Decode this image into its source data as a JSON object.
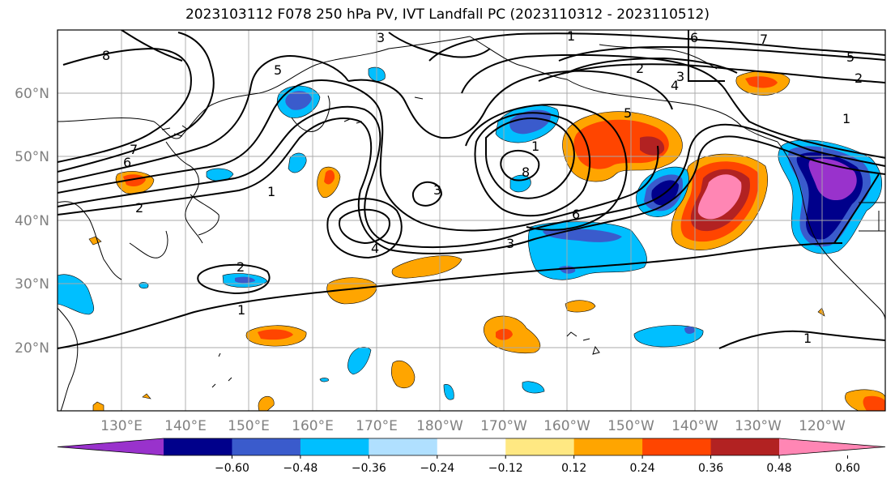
{
  "title": "2023103112 F078 250 hPa PV, IVT Landfall PC (2023110312 - 2023110512)",
  "lat_labels": [
    "60°N",
    "50°N",
    "40°N",
    "30°N",
    "20°N"
  ],
  "lon_labels": [
    "130°E",
    "140°E",
    "150°E",
    "160°E",
    "170°E",
    "180°W",
    "170°W",
    "160°W",
    "150°W",
    "140°W",
    "130°W",
    "120°W"
  ],
  "colorbar": {
    "colors": [
      "#9932cc",
      "#00008b",
      "#3a5bcc",
      "#00bfff",
      "#b0e0ff",
      "#ffffff",
      "#ffe882",
      "#ffa500",
      "#ff4500",
      "#b22222",
      "#ff86b4"
    ],
    "ticks": [
      "−0.60",
      "−0.48",
      "−0.36",
      "−0.24",
      "−0.12",
      "0.12",
      "0.24",
      "0.36",
      "0.48",
      "0.60"
    ]
  },
  "contour_labels": [
    "1",
    "2",
    "3",
    "4",
    "5",
    "6",
    "7",
    "8"
  ]
}
